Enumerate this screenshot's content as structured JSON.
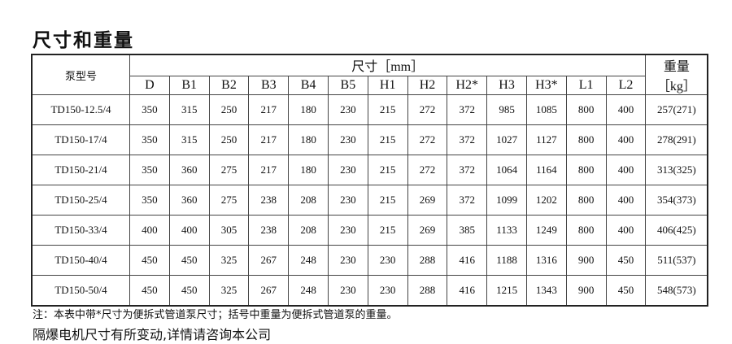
{
  "title": "尺寸和重量",
  "table": {
    "model_header": "泵型号",
    "dim_header": "尺寸［mm］",
    "weight_header": [
      "重量",
      "［kg］"
    ],
    "columns": [
      "D",
      "B1",
      "B2",
      "B3",
      "B4",
      "B5",
      "H1",
      "H2",
      "H2*",
      "H3",
      "H3*",
      "L1",
      "L2"
    ],
    "rows": [
      {
        "model": "TD150-12.5/4",
        "values": [
          "350",
          "315",
          "250",
          "217",
          "180",
          "230",
          "215",
          "272",
          "372",
          "985",
          "1085",
          "800",
          "400"
        ],
        "weight": "257(271)"
      },
      {
        "model": "TD150-17/4",
        "values": [
          "350",
          "315",
          "250",
          "217",
          "180",
          "230",
          "215",
          "272",
          "372",
          "1027",
          "1127",
          "800",
          "400"
        ],
        "weight": "278(291)"
      },
      {
        "model": "TD150-21/4",
        "values": [
          "350",
          "360",
          "275",
          "217",
          "180",
          "230",
          "215",
          "272",
          "372",
          "1064",
          "1164",
          "800",
          "400"
        ],
        "weight": "313(325)"
      },
      {
        "model": "TD150-25/4",
        "values": [
          "350",
          "360",
          "275",
          "238",
          "208",
          "230",
          "215",
          "269",
          "372",
          "1099",
          "1202",
          "800",
          "400"
        ],
        "weight": "354(373)"
      },
      {
        "model": "TD150-33/4",
        "values": [
          "400",
          "400",
          "305",
          "238",
          "208",
          "230",
          "215",
          "269",
          "385",
          "1133",
          "1249",
          "800",
          "400"
        ],
        "weight": "406(425)"
      },
      {
        "model": "TD150-40/4",
        "values": [
          "450",
          "450",
          "325",
          "267",
          "248",
          "230",
          "230",
          "288",
          "416",
          "1188",
          "1316",
          "900",
          "450"
        ],
        "weight": "511(537)"
      },
      {
        "model": "TD150-50/4",
        "values": [
          "450",
          "450",
          "325",
          "267",
          "248",
          "230",
          "230",
          "288",
          "416",
          "1215",
          "1343",
          "900",
          "450"
        ],
        "weight": "548(573)"
      }
    ]
  },
  "note": "注：本表中带*尺寸为便拆式管道泵尺寸；括号中重量为便拆式管道泵的重量。",
  "note2": "隔爆电机尺寸有所变动,详情请咨询本公司"
}
